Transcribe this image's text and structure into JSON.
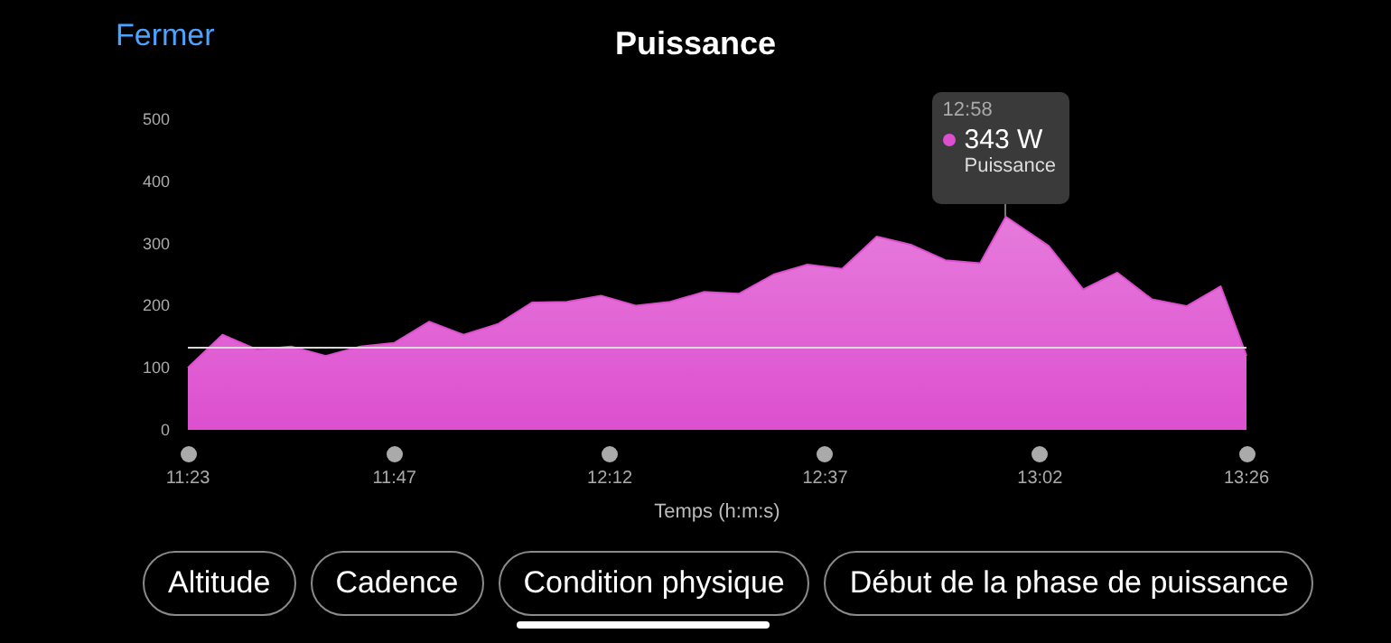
{
  "chart_data": {
    "type": "area",
    "title": "Puissance",
    "xlabel": "Temps (h:m:s)",
    "x": [
      11.383,
      11.45,
      11.517,
      11.583,
      11.65,
      11.717,
      11.783,
      11.85,
      11.917,
      11.983,
      12.05,
      12.117,
      12.183,
      12.25,
      12.317,
      12.383,
      12.45,
      12.517,
      12.583,
      12.65,
      12.717,
      12.783,
      12.85,
      12.917,
      12.967,
      13.05,
      13.117,
      13.183,
      13.25,
      13.317,
      13.383,
      13.433
    ],
    "series": [
      {
        "color": "#dd4fcf",
        "values": [
          100,
          153,
          129,
          134,
          119,
          134,
          140,
          174,
          153,
          170,
          205,
          206,
          216,
          200,
          206,
          222,
          219,
          250,
          266,
          259,
          311,
          298,
          273,
          268,
          343,
          296,
          226,
          253,
          210,
          199,
          231,
          119
        ]
      }
    ],
    "xlim": [
      11.383,
      13.433
    ],
    "xticks": [
      {
        "value": 11.383,
        "label": "11:23"
      },
      {
        "value": 11.783,
        "label": "11:47"
      },
      {
        "value": 12.2,
        "label": "12:12"
      },
      {
        "value": 12.617,
        "label": "12:37"
      },
      {
        "value": 13.033,
        "label": "13:02"
      },
      {
        "value": 13.433,
        "label": "13:26"
      }
    ],
    "ylim": [
      0,
      500
    ],
    "yticks": [
      0,
      100,
      200,
      300,
      400,
      500
    ],
    "ref_lines": [
      {
        "axis": "y",
        "value": 133,
        "color": "#d9d9d9"
      }
    ],
    "annotations": [
      {
        "text": "12:58\n343 W\nPuissance",
        "x": 12.967,
        "y": 343
      },
      "Fermer",
      "Altitude",
      "Cadence",
      "Condition physique",
      "Début de la phase de puissance"
    ],
    "grid": false,
    "marker": "none"
  }
}
